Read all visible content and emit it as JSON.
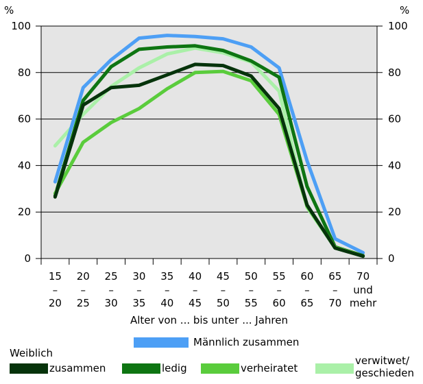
{
  "chart_data": {
    "type": "line",
    "xlabel": "Alter von ... bis unter ... Jahren",
    "y_unit_left": "%",
    "y_unit_right": "%",
    "ylim": [
      0,
      100
    ],
    "yticks": [
      0,
      20,
      40,
      60,
      80,
      100
    ],
    "grid": true,
    "categories": [
      {
        "top": "15",
        "dash": "–",
        "bottom": "20"
      },
      {
        "top": "20",
        "dash": "–",
        "bottom": "25"
      },
      {
        "top": "25",
        "dash": "–",
        "bottom": "30"
      },
      {
        "top": "30",
        "dash": "–",
        "bottom": "35"
      },
      {
        "top": "35",
        "dash": "–",
        "bottom": "40"
      },
      {
        "top": "40",
        "dash": "–",
        "bottom": "45"
      },
      {
        "top": "45",
        "dash": "–",
        "bottom": "50"
      },
      {
        "top": "50",
        "dash": "–",
        "bottom": "55"
      },
      {
        "top": "55",
        "dash": "–",
        "bottom": "60"
      },
      {
        "top": "60",
        "dash": "–",
        "bottom": "65"
      },
      {
        "top": "65",
        "dash": "–",
        "bottom": "70"
      },
      {
        "top": "70",
        "dash": "und",
        "bottom": "mehr"
      }
    ],
    "series": [
      {
        "key": "verwitwet",
        "name": "verwitwet/ geschieden",
        "name_lines": [
          "verwitwet/",
          "geschieden"
        ],
        "color": "#aaf0a8",
        "values": [
          48.5,
          62,
          74,
          82,
          88,
          90.5,
          88.5,
          84.5,
          72,
          22,
          4.5,
          1.2
        ]
      },
      {
        "key": "maennlich",
        "name": "Männlich zusammen",
        "color": "#4d9ff5",
        "values": [
          33,
          73.5,
          85.5,
          94.8,
          96,
          95.5,
          94.5,
          91,
          82,
          42,
          8.5,
          2.5
        ]
      },
      {
        "key": "ledig",
        "name": "ledig",
        "color": "#0e7512",
        "values": [
          27,
          68,
          82.5,
          90,
          91,
          91.5,
          89.5,
          85,
          78,
          31,
          5,
          1.2
        ]
      },
      {
        "key": "verheiratet",
        "name": "verheiratet",
        "color": "#5acc3c",
        "values": [
          28,
          50,
          58.5,
          64.5,
          73,
          80,
          80.5,
          76.5,
          62,
          22.5,
          4.8,
          1
        ]
      },
      {
        "key": "zusammen",
        "name": "zusammen",
        "color": "#06330b",
        "values": [
          26.5,
          66,
          73.5,
          74.5,
          79,
          83.5,
          83,
          78.5,
          64.5,
          23,
          4.5,
          1
        ]
      }
    ],
    "legend": {
      "heading": "Weiblich"
    },
    "colors": {
      "plot_background": "#e5e5e5",
      "gridline": "#000000"
    }
  }
}
